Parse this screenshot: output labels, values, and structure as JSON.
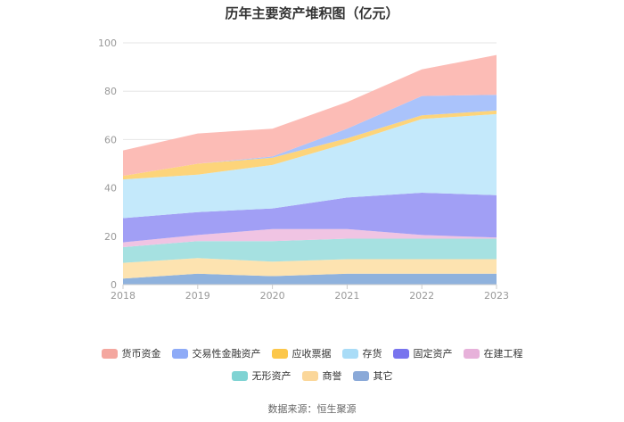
{
  "chart_data": {
    "type": "area",
    "stacked": true,
    "title": "历年主要资产堆积图（亿元）",
    "x": [
      "2018",
      "2019",
      "2020",
      "2021",
      "2022",
      "2023"
    ],
    "ylim": [
      0,
      100
    ],
    "yticks": [
      "0",
      "20",
      "40",
      "60",
      "80",
      "100"
    ],
    "grid": true,
    "legend_position": "bottom",
    "series": [
      {
        "name": "其它",
        "color": "#8fb2dd",
        "values": [
          2.5,
          4.5,
          3.5,
          4.5,
          4.5,
          4.5
        ]
      },
      {
        "name": "商誉",
        "color": "#fde3b0",
        "values": [
          6.5,
          6.5,
          6.0,
          6.0,
          6.0,
          6.0
        ]
      },
      {
        "name": "无形资产",
        "color": "#a6e1e1",
        "values": [
          6.5,
          7.0,
          8.5,
          8.5,
          8.5,
          8.5
        ]
      },
      {
        "name": "在建工程",
        "color": "#f0c4e3",
        "values": [
          2.0,
          2.5,
          5.0,
          4.0,
          1.5,
          0.5
        ]
      },
      {
        "name": "固定资产",
        "color": "#a19ff5",
        "values": [
          10.0,
          9.5,
          8.5,
          13.0,
          17.5,
          17.5
        ]
      },
      {
        "name": "存货",
        "color": "#c4e9fb",
        "values": [
          16.0,
          15.5,
          18.0,
          22.5,
          30.5,
          33.5
        ]
      },
      {
        "name": "应收票据",
        "color": "#fdd47a",
        "values": [
          1.5,
          4.5,
          3.0,
          2.0,
          1.5,
          1.5
        ]
      },
      {
        "name": "交易性金融资产",
        "color": "#aac3fb",
        "values": [
          0.0,
          0.0,
          0.5,
          4.0,
          8.0,
          6.5
        ]
      },
      {
        "name": "货币资金",
        "color": "#fcbcb6",
        "values": [
          10.5,
          12.5,
          11.5,
          11.0,
          11.0,
          16.5
        ]
      }
    ],
    "legend": [
      {
        "name": "货币资金",
        "color": "#f4a79f"
      },
      {
        "name": "交易性金融资产",
        "color": "#8eabf7"
      },
      {
        "name": "应收票据",
        "color": "#fcc74a"
      },
      {
        "name": "存货",
        "color": "#a9dcf7"
      },
      {
        "name": "固定资产",
        "color": "#7874ee"
      },
      {
        "name": "在建工程",
        "color": "#e7b1da"
      },
      {
        "name": "无形资产",
        "color": "#7fd3d3"
      },
      {
        "name": "商誉",
        "color": "#fbd79a"
      },
      {
        "name": "其它",
        "color": "#8aa9d8"
      }
    ]
  },
  "source": "数据来源：恒生聚源"
}
